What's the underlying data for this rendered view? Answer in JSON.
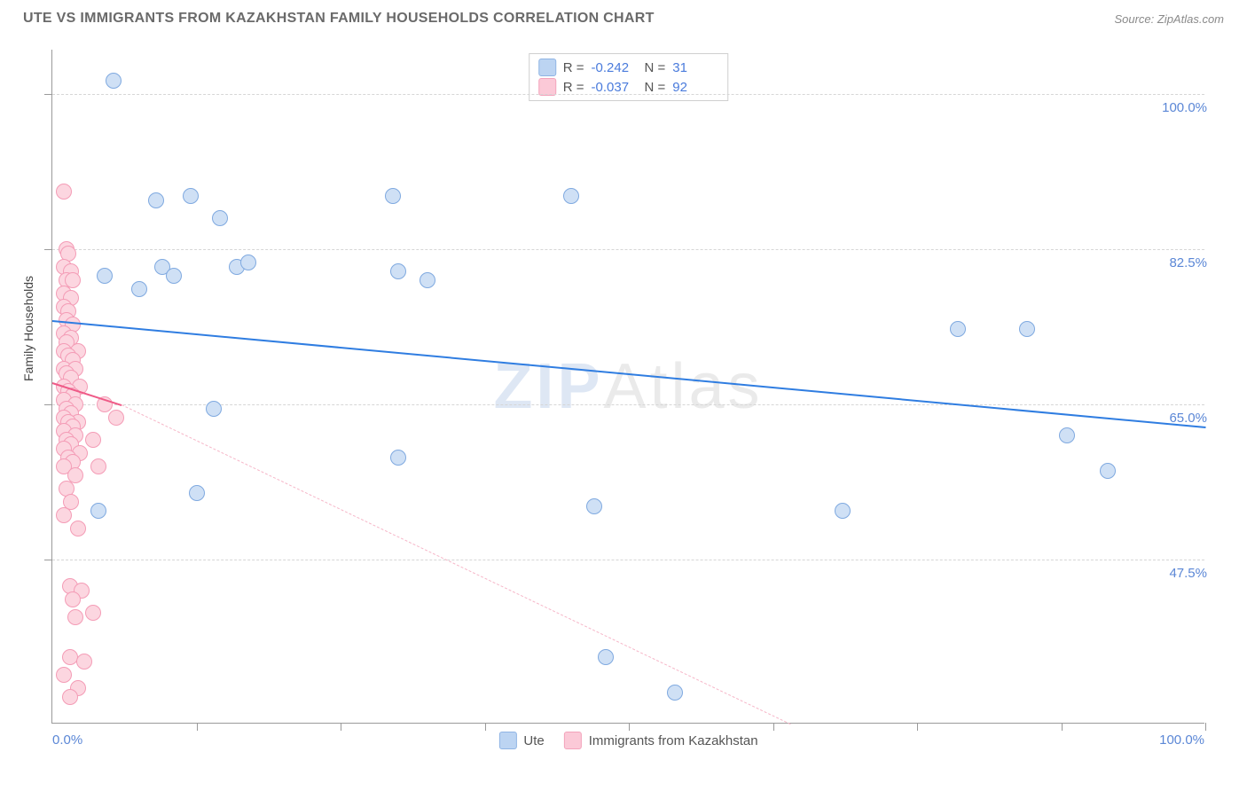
{
  "header": {
    "title": "UTE VS IMMIGRANTS FROM KAZAKHSTAN FAMILY HOUSEHOLDS CORRELATION CHART",
    "source": "Source: ZipAtlas.com"
  },
  "watermark": {
    "text": "ZIPAtlas",
    "color1": "#b8cbe8",
    "color2": "#d2d2d2"
  },
  "chart": {
    "type": "scatter",
    "y_axis_title": "Family Households",
    "background_color": "#ffffff",
    "grid_color": "#d6d6d6",
    "axis_color": "#9a9a9a",
    "xlim": [
      0,
      100
    ],
    "ylim": [
      29,
      105
    ],
    "x_labels": {
      "min": "0.0%",
      "max": "100.0%"
    },
    "y_ticks": [
      {
        "v": 47.5,
        "label": "47.5%"
      },
      {
        "v": 65.0,
        "label": "65.0%"
      },
      {
        "v": 82.5,
        "label": "82.5%"
      },
      {
        "v": 100.0,
        "label": "100.0%"
      }
    ],
    "x_tick_positions": [
      12.5,
      25,
      37.5,
      50,
      62.5,
      75,
      87.5,
      100
    ],
    "y_tick_positions": [
      47.5,
      65.0,
      82.5,
      100.0
    ],
    "marker_radius": 9,
    "marker_stroke_width": 1.5,
    "series": [
      {
        "name": "Ute",
        "fill": "#cfe0f5",
        "stroke": "#7fa9e0",
        "legend_fill": "#bcd4f2",
        "legend_stroke": "#8fb4e4",
        "trend": {
          "color": "#2f7de1",
          "width": 2.5,
          "dash": "solid",
          "x1": 0,
          "y1": 74.5,
          "x2": 100,
          "y2": 62.5
        },
        "dashed_trend": null,
        "stats": {
          "R": "-0.242",
          "N": "31"
        },
        "points": [
          [
            5.3,
            101.5
          ],
          [
            4.5,
            79.5
          ],
          [
            4.0,
            53.0
          ],
          [
            7.5,
            78.0
          ],
          [
            9.0,
            88.0
          ],
          [
            12.0,
            88.5
          ],
          [
            9.5,
            80.5
          ],
          [
            10.5,
            79.5
          ],
          [
            14.5,
            86.0
          ],
          [
            16.0,
            80.5
          ],
          [
            17.0,
            81.0
          ],
          [
            14.0,
            64.5
          ],
          [
            12.5,
            55.0
          ],
          [
            29.5,
            88.5
          ],
          [
            30.0,
            80.0
          ],
          [
            32.5,
            79.0
          ],
          [
            30.0,
            59.0
          ],
          [
            47.0,
            53.5
          ],
          [
            45.0,
            88.5
          ],
          [
            48.0,
            36.5
          ],
          [
            54.0,
            32.5
          ],
          [
            68.5,
            53.0
          ],
          [
            78.5,
            73.5
          ],
          [
            84.5,
            73.5
          ],
          [
            88.0,
            61.5
          ],
          [
            91.5,
            57.5
          ]
        ]
      },
      {
        "name": "Immigrants from Kazakhstan",
        "fill": "#fcd6e0",
        "stroke": "#f49cb6",
        "legend_fill": "#fbc9d7",
        "legend_stroke": "#f3a3bb",
        "trend": {
          "color": "#ef5a87",
          "width": 2,
          "dash": "solid",
          "x1": 0,
          "y1": 67.5,
          "x2": 6,
          "y2": 65.0
        },
        "dashed_trend": {
          "color": "#f6b6c8",
          "width": 1.2,
          "x1": 6,
          "y1": 65.0,
          "x2": 64,
          "y2": 29
        },
        "stats": {
          "R": "-0.037",
          "N": "92"
        },
        "points": [
          [
            1.0,
            89.0
          ],
          [
            1.2,
            82.5
          ],
          [
            1.4,
            82.0
          ],
          [
            1.0,
            80.5
          ],
          [
            1.6,
            80.0
          ],
          [
            1.2,
            79.0
          ],
          [
            1.8,
            79.0
          ],
          [
            1.0,
            77.5
          ],
          [
            1.6,
            77.0
          ],
          [
            1.0,
            76.0
          ],
          [
            1.4,
            75.5
          ],
          [
            1.2,
            74.5
          ],
          [
            1.8,
            74.0
          ],
          [
            1.0,
            73.0
          ],
          [
            1.6,
            72.5
          ],
          [
            1.2,
            72.0
          ],
          [
            1.0,
            71.0
          ],
          [
            2.2,
            71.0
          ],
          [
            1.4,
            70.5
          ],
          [
            1.8,
            70.0
          ],
          [
            1.0,
            69.0
          ],
          [
            2.0,
            69.0
          ],
          [
            1.2,
            68.5
          ],
          [
            1.6,
            68.0
          ],
          [
            1.0,
            67.0
          ],
          [
            2.4,
            67.0
          ],
          [
            1.4,
            66.5
          ],
          [
            1.8,
            66.0
          ],
          [
            1.0,
            65.5
          ],
          [
            2.0,
            65.0
          ],
          [
            1.2,
            64.5
          ],
          [
            1.6,
            64.0
          ],
          [
            1.0,
            63.5
          ],
          [
            2.2,
            63.0
          ],
          [
            1.4,
            63.0
          ],
          [
            1.8,
            62.5
          ],
          [
            1.0,
            62.0
          ],
          [
            2.0,
            61.5
          ],
          [
            1.2,
            61.0
          ],
          [
            1.6,
            60.5
          ],
          [
            1.0,
            60.0
          ],
          [
            2.4,
            59.5
          ],
          [
            1.4,
            59.0
          ],
          [
            1.8,
            58.5
          ],
          [
            1.0,
            58.0
          ],
          [
            2.0,
            57.0
          ],
          [
            1.2,
            55.5
          ],
          [
            1.6,
            54.0
          ],
          [
            1.0,
            52.5
          ],
          [
            2.2,
            51.0
          ],
          [
            4.5,
            65.0
          ],
          [
            5.5,
            63.5
          ],
          [
            3.5,
            61.0
          ],
          [
            4.0,
            58.0
          ],
          [
            1.5,
            44.5
          ],
          [
            2.5,
            44.0
          ],
          [
            1.8,
            43.0
          ],
          [
            2.0,
            41.0
          ],
          [
            3.5,
            41.5
          ],
          [
            1.5,
            36.5
          ],
          [
            2.8,
            36.0
          ],
          [
            1.0,
            34.5
          ],
          [
            2.2,
            33.0
          ],
          [
            1.5,
            32.0
          ]
        ]
      }
    ],
    "bottom_legend": [
      {
        "label": "Ute",
        "series_index": 0
      },
      {
        "label": "Immigrants from Kazakhstan",
        "series_index": 1
      }
    ]
  }
}
